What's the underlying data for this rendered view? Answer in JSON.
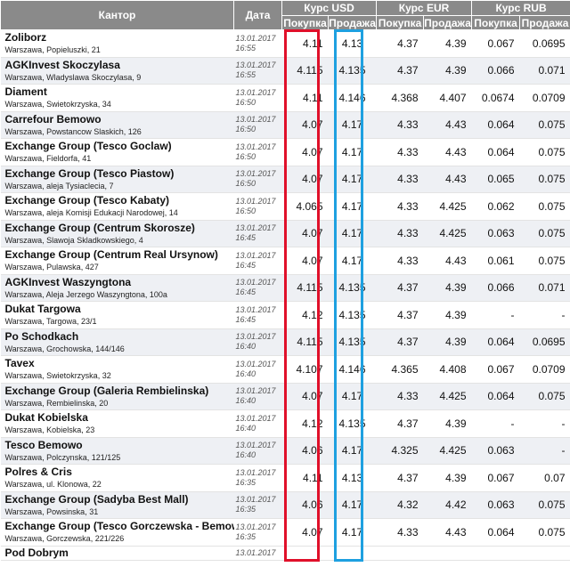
{
  "header": {
    "kantor": "Кантор",
    "data": "Дата",
    "usd": "Курс USD",
    "eur": "Курс EUR",
    "rub": "Курс RUB",
    "buy": "Покупка",
    "sell": "Продажа"
  },
  "rows": [
    {
      "name": "Zoliborz",
      "addr": "Warszawa, Popieluszki, 21",
      "date": "13.01.2017",
      "time": "16:55",
      "usd_buy": "4.11",
      "usd_sell": "4.13",
      "eur_buy": "4.37",
      "eur_sell": "4.39",
      "rub_buy": "0.067",
      "rub_sell": "0.0695"
    },
    {
      "name": "AGKInvest Skoczylasa",
      "addr": "Warszawa, Wladyslawa Skoczylasa, 9",
      "date": "13.01.2017",
      "time": "16:55",
      "usd_buy": "4.115",
      "usd_sell": "4.135",
      "eur_buy": "4.37",
      "eur_sell": "4.39",
      "rub_buy": "0.066",
      "rub_sell": "0.071"
    },
    {
      "name": "Diament",
      "addr": "Warszawa, Swietokrzyska, 34",
      "date": "13.01.2017",
      "time": "16:50",
      "usd_buy": "4.11",
      "usd_sell": "4.146",
      "eur_buy": "4.368",
      "eur_sell": "4.407",
      "rub_buy": "0.0674",
      "rub_sell": "0.0709"
    },
    {
      "name": "Carrefour Bemowo",
      "addr": "Warszawa, Powstancow Slaskich, 126",
      "date": "13.01.2017",
      "time": "16:50",
      "usd_buy": "4.07",
      "usd_sell": "4.17",
      "eur_buy": "4.33",
      "eur_sell": "4.43",
      "rub_buy": "0.064",
      "rub_sell": "0.075"
    },
    {
      "name": "Exchange Group (Tesco Goclaw)",
      "addr": "Warszawa, Fieldorfa, 41",
      "date": "13.01.2017",
      "time": "16:50",
      "usd_buy": "4.07",
      "usd_sell": "4.17",
      "eur_buy": "4.33",
      "eur_sell": "4.43",
      "rub_buy": "0.064",
      "rub_sell": "0.075"
    },
    {
      "name": "Exchange Group (Tesco Piastow)",
      "addr": "Warszawa, aleja Tysiaclecia, 7",
      "date": "13.01.2017",
      "time": "16:50",
      "usd_buy": "4.07",
      "usd_sell": "4.17",
      "eur_buy": "4.33",
      "eur_sell": "4.43",
      "rub_buy": "0.065",
      "rub_sell": "0.075"
    },
    {
      "name": "Exchange Group (Tesco Kabaty)",
      "addr": "Warszawa, aleja Komisji Edukacji Narodowej, 14",
      "date": "13.01.2017",
      "time": "16:50",
      "usd_buy": "4.065",
      "usd_sell": "4.17",
      "eur_buy": "4.33",
      "eur_sell": "4.425",
      "rub_buy": "0.062",
      "rub_sell": "0.075"
    },
    {
      "name": "Exchange Group (Centrum Skorosze)",
      "addr": "Warszawa, Slawoja Skladkowskiego, 4",
      "date": "13.01.2017",
      "time": "16:45",
      "usd_buy": "4.07",
      "usd_sell": "4.17",
      "eur_buy": "4.33",
      "eur_sell": "4.425",
      "rub_buy": "0.063",
      "rub_sell": "0.075"
    },
    {
      "name": "Exchange Group (Centrum Real Ursynow)",
      "addr": "Warszawa, Pulawska, 427",
      "date": "13.01.2017",
      "time": "16:45",
      "usd_buy": "4.07",
      "usd_sell": "4.17",
      "eur_buy": "4.33",
      "eur_sell": "4.43",
      "rub_buy": "0.061",
      "rub_sell": "0.075"
    },
    {
      "name": "AGKInvest Waszyngtona",
      "addr": "Warszawa, Aleja Jerzego Waszyngtona, 100a",
      "date": "13.01.2017",
      "time": "16:45",
      "usd_buy": "4.115",
      "usd_sell": "4.135",
      "eur_buy": "4.37",
      "eur_sell": "4.39",
      "rub_buy": "0.066",
      "rub_sell": "0.071"
    },
    {
      "name": "Dukat Targowa",
      "addr": "Warszawa, Targowa, 23/1",
      "date": "13.01.2017",
      "time": "16:45",
      "usd_buy": "4.12",
      "usd_sell": "4.135",
      "eur_buy": "4.37",
      "eur_sell": "4.39",
      "rub_buy": "-",
      "rub_sell": "-"
    },
    {
      "name": "Po Schodkach",
      "addr": "Warszawa, Grochowska, 144/146",
      "date": "13.01.2017",
      "time": "16:40",
      "usd_buy": "4.115",
      "usd_sell": "4.135",
      "eur_buy": "4.37",
      "eur_sell": "4.39",
      "rub_buy": "0.064",
      "rub_sell": "0.0695"
    },
    {
      "name": "Tavex",
      "addr": "Warszawa, Swietokrzyska, 32",
      "date": "13.01.2017",
      "time": "16:40",
      "usd_buy": "4.107",
      "usd_sell": "4.146",
      "eur_buy": "4.365",
      "eur_sell": "4.408",
      "rub_buy": "0.067",
      "rub_sell": "0.0709"
    },
    {
      "name": "Exchange Group (Galeria Rembielinska)",
      "addr": "Warszawa, Rembielinska, 20",
      "date": "13.01.2017",
      "time": "16:40",
      "usd_buy": "4.07",
      "usd_sell": "4.17",
      "eur_buy": "4.33",
      "eur_sell": "4.425",
      "rub_buy": "0.064",
      "rub_sell": "0.075"
    },
    {
      "name": "Dukat Kobielska",
      "addr": "Warszawa, Kobielska, 23",
      "date": "13.01.2017",
      "time": "16:40",
      "usd_buy": "4.12",
      "usd_sell": "4.135",
      "eur_buy": "4.37",
      "eur_sell": "4.39",
      "rub_buy": "-",
      "rub_sell": "-"
    },
    {
      "name": "Tesco Bemowo",
      "addr": "Warszawa, Polczynska, 121/125",
      "date": "13.01.2017",
      "time": "16:40",
      "usd_buy": "4.06",
      "usd_sell": "4.17",
      "eur_buy": "4.325",
      "eur_sell": "4.425",
      "rub_buy": "0.063",
      "rub_sell": "-"
    },
    {
      "name": "Polres & Cris",
      "addr": "Warszawa, ul. Klonowa, 22",
      "date": "13.01.2017",
      "time": "16:35",
      "usd_buy": "4.11",
      "usd_sell": "4.13",
      "eur_buy": "4.37",
      "eur_sell": "4.39",
      "rub_buy": "0.067",
      "rub_sell": "0.07"
    },
    {
      "name": "Exchange Group (Sadyba Best Mall)",
      "addr": "Warszawa, Powsinska, 31",
      "date": "13.01.2017",
      "time": "16:35",
      "usd_buy": "4.06",
      "usd_sell": "4.17",
      "eur_buy": "4.32",
      "eur_sell": "4.42",
      "rub_buy": "0.063",
      "rub_sell": "0.075"
    },
    {
      "name": "Exchange Group (Tesco Gorczewska - Bemowo)",
      "addr": "Warszawa, Gorczewska, 221/226",
      "date": "13.01.2017",
      "time": "16:35",
      "usd_buy": "4.07",
      "usd_sell": "4.17",
      "eur_buy": "4.33",
      "eur_sell": "4.43",
      "rub_buy": "0.064",
      "rub_sell": "0.075"
    }
  ],
  "partial_row": {
    "name": "Pod Dobrym",
    "date": "13.01.2017"
  },
  "colors": {
    "header": "#8a8a8a",
    "highlight_red": "#e0102a",
    "highlight_blue": "#1ea0e0",
    "stripe": "#eef0f4"
  }
}
